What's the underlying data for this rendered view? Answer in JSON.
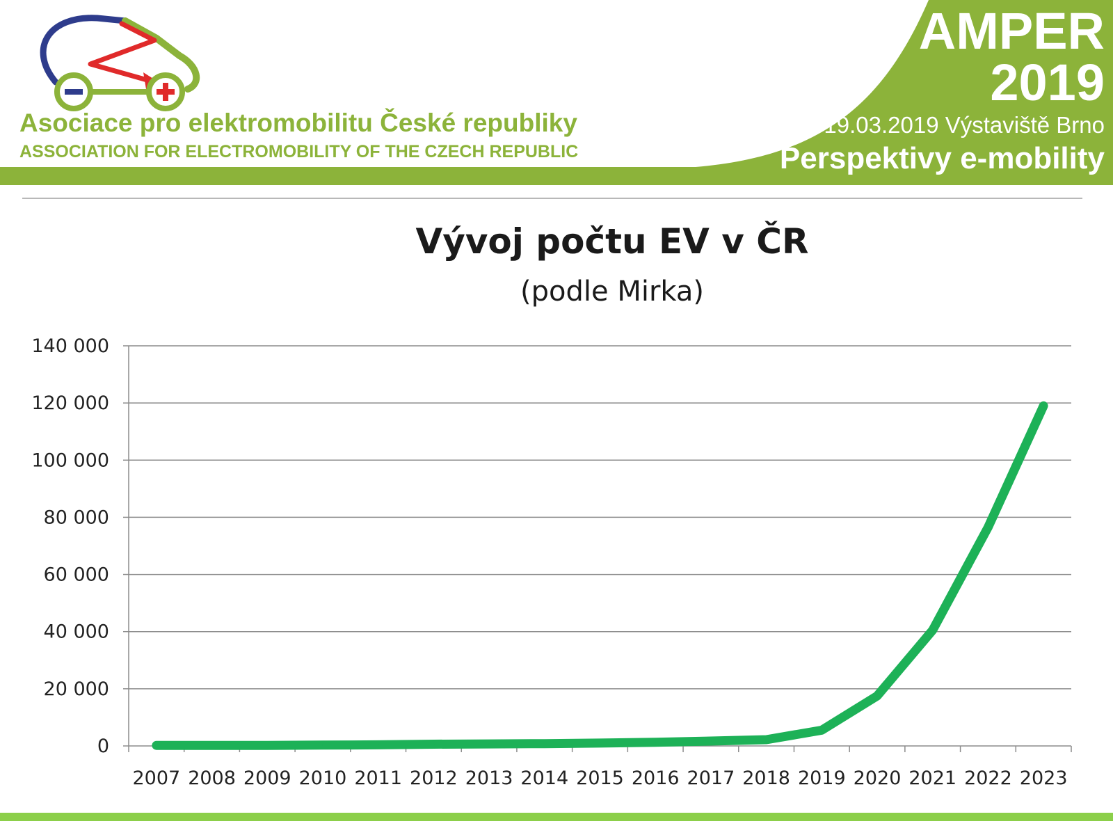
{
  "header": {
    "org_name_cz": "Asociace pro elektromobilitu České republiky",
    "org_name_en": "ASSOCIATION FOR ELECTROMOBILITY OF THE CZECH REPUBLIC",
    "event_title": "AMPER",
    "event_year": "2019",
    "event_date_place": "19.03.2019 Výstaviště Brno",
    "event_topic": "Perspektivy e-mobility",
    "logo_icon": "electric-car-logo-icon",
    "colors": {
      "accent_green": "#8cb33a",
      "logo_blue": "#2e3c8c",
      "logo_red": "#e02a2a"
    }
  },
  "chart_data": {
    "type": "line",
    "title": "Vývoj počtu EV v ČR",
    "subtitle": "(podle Mirka)",
    "xlabel": "",
    "ylabel": "",
    "categories": [
      "2007",
      "2008",
      "2009",
      "2010",
      "2011",
      "2012",
      "2013",
      "2014",
      "2015",
      "2016",
      "2017",
      "2018",
      "2019",
      "2020",
      "2021",
      "2022",
      "2023"
    ],
    "values": [
      200,
      200,
      200,
      300,
      400,
      600,
      700,
      800,
      1000,
      1300,
      1700,
      2200,
      5500,
      17500,
      40500,
      76500,
      119000
    ],
    "ylim": [
      0,
      140000
    ],
    "yticks": [
      0,
      20000,
      40000,
      60000,
      80000,
      100000,
      120000,
      140000
    ],
    "ytick_labels": [
      "0",
      "20 000",
      "40 000",
      "60 000",
      "80 000",
      "100 000",
      "120 000",
      "140 000"
    ],
    "grid": true,
    "legend": "none",
    "line_color": "#1db157"
  }
}
